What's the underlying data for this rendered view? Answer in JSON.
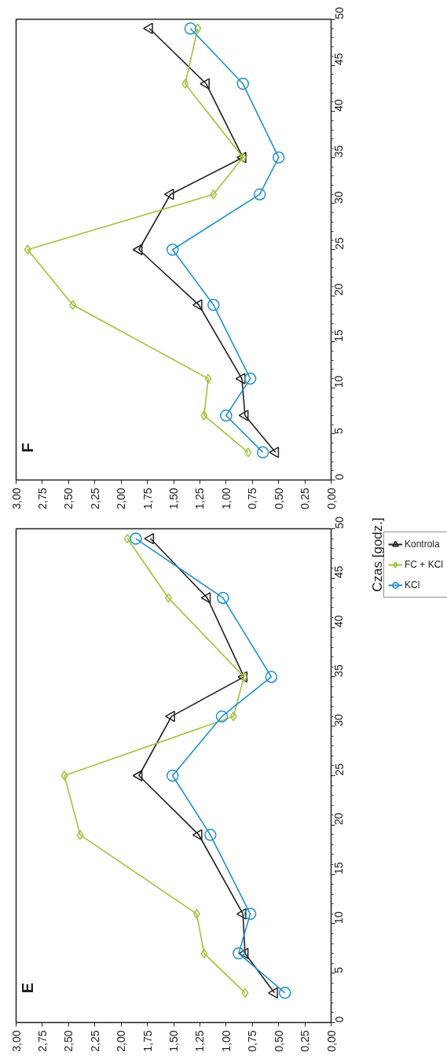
{
  "chart_data": [
    {
      "type": "line",
      "title": "F",
      "ylim": [
        0,
        50
      ],
      "yticks": [
        0,
        5,
        10,
        15,
        20,
        25,
        30,
        35,
        40,
        45,
        50
      ],
      "xlim": [
        3,
        0
      ],
      "xticks": [
        {
          "value": 0,
          "label": "0,00"
        },
        {
          "value": 0.25,
          "label": "0,25"
        },
        {
          "value": 0.5,
          "label": "0,50"
        },
        {
          "value": 0.75,
          "label": "0,75"
        },
        {
          "value": 1,
          "label": "1,00"
        },
        {
          "value": 1.25,
          "label": "1,25"
        },
        {
          "value": 1.5,
          "label": "1,50"
        },
        {
          "value": 1.75,
          "label": "1,75"
        },
        {
          "value": 2,
          "label": "2,00"
        },
        {
          "value": 2.25,
          "label": "2,25"
        },
        {
          "value": 2.5,
          "label": "2,50"
        },
        {
          "value": 2.75,
          "label": "2,75"
        },
        {
          "value": 3,
          "label": "3,00"
        }
      ],
      "grid": false,
      "series": [
        {
          "color": "#231f20",
          "marker": "triangle",
          "x": [
            0.53,
            0.82,
            0.85,
            1.26,
            1.83,
            1.53,
            0.84,
            1.19,
            1.73
          ],
          "values": [
            3,
            7,
            11,
            19,
            25,
            31,
            35,
            43,
            49
          ]
        },
        {
          "color": "#9dc33b",
          "marker": "diamond",
          "x": [
            0.79,
            1.21,
            1.17,
            2.46,
            2.89,
            1.12,
            0.84,
            1.39,
            1.27
          ],
          "values": [
            3,
            7,
            11,
            19,
            25,
            31,
            35,
            43,
            49
          ]
        },
        {
          "color": "#1f8fd0",
          "marker": "circle",
          "x": [
            0.65,
            1.0,
            0.77,
            1.12,
            1.51,
            0.68,
            0.5,
            0.84,
            1.34
          ],
          "values": [
            3,
            7,
            11,
            19,
            25,
            31,
            35,
            43,
            49
          ]
        }
      ]
    },
    {
      "type": "line",
      "title": "E",
      "ylabel": "Czas [godz.]",
      "ylim": [
        0,
        50
      ],
      "yticks": [
        0,
        5,
        10,
        15,
        20,
        25,
        30,
        35,
        40,
        45,
        50
      ],
      "xlim": [
        3,
        0
      ],
      "xticks": [
        {
          "value": 0,
          "label": "0,00"
        },
        {
          "value": 0.25,
          "label": "0,25"
        },
        {
          "value": 0.5,
          "label": "0,50"
        },
        {
          "value": 0.75,
          "label": "0,75"
        },
        {
          "value": 1,
          "label": "1,00"
        },
        {
          "value": 1.25,
          "label": "1,25"
        },
        {
          "value": 1.5,
          "label": "1,50"
        },
        {
          "value": 1.75,
          "label": "1,75"
        },
        {
          "value": 2,
          "label": "2,00"
        },
        {
          "value": 2.25,
          "label": "2,25"
        },
        {
          "value": 2.5,
          "label": "2,50"
        },
        {
          "value": 2.75,
          "label": "2,75"
        },
        {
          "value": 3,
          "label": "3,00"
        }
      ],
      "grid": false,
      "legend": "right",
      "series": [
        {
          "name": "Kontrola",
          "color": "#231f20",
          "marker": "triangle",
          "x": [
            0.54,
            0.82,
            0.84,
            1.26,
            1.83,
            1.52,
            0.83,
            1.18,
            1.72
          ],
          "values": [
            3,
            7,
            11,
            19,
            25,
            31,
            35,
            43,
            49
          ]
        },
        {
          "name": "FC + KCl",
          "color": "#9dc33b",
          "marker": "diamond",
          "x": [
            0.82,
            1.21,
            1.28,
            2.39,
            2.54,
            0.93,
            0.83,
            1.55,
            1.94
          ],
          "values": [
            3,
            7,
            11,
            19,
            25,
            31,
            35,
            43,
            49
          ]
        },
        {
          "name": "KCl",
          "color": "#1f8fd0",
          "marker": "circle",
          "x": [
            0.44,
            0.88,
            0.77,
            1.15,
            1.51,
            1.04,
            0.57,
            1.03,
            1.86
          ],
          "values": [
            3,
            7,
            11,
            19,
            25,
            31,
            35,
            43,
            49
          ]
        }
      ]
    }
  ]
}
